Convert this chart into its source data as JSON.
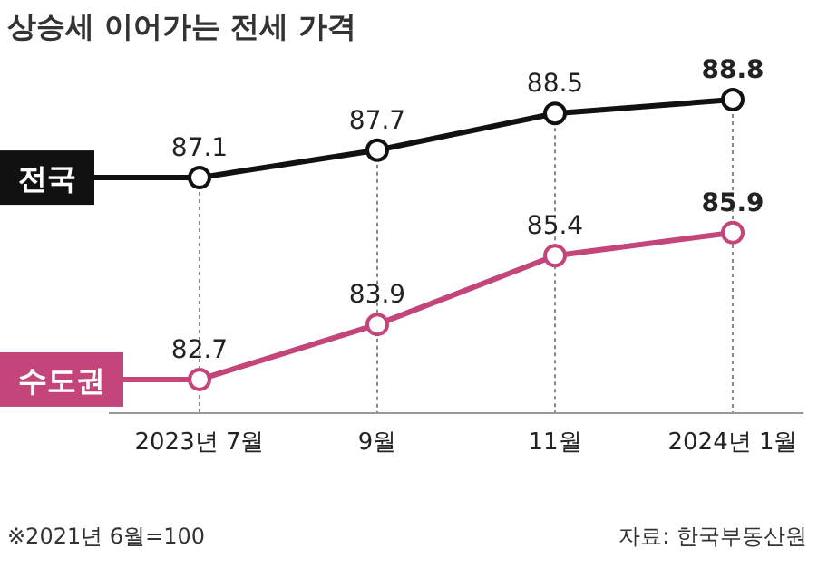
{
  "chart_data": {
    "type": "line",
    "title": "상승세 이어가는 전세 가격",
    "categories": [
      "2023년 7월",
      "9월",
      "11월",
      "2024년 1월"
    ],
    "series": [
      {
        "name": "전국",
        "color": "#111111",
        "values": [
          87.1,
          87.7,
          88.5,
          88.8
        ]
      },
      {
        "name": "수도권",
        "color": "#c4457a",
        "values": [
          82.7,
          83.9,
          85.4,
          85.9
        ]
      }
    ],
    "data_labels": true,
    "grid": "x",
    "marker": "circle",
    "line_style": "solid",
    "legend": "left",
    "annotations": [
      "※2021년 6월=100",
      "자료: 한국부동산원"
    ]
  }
}
